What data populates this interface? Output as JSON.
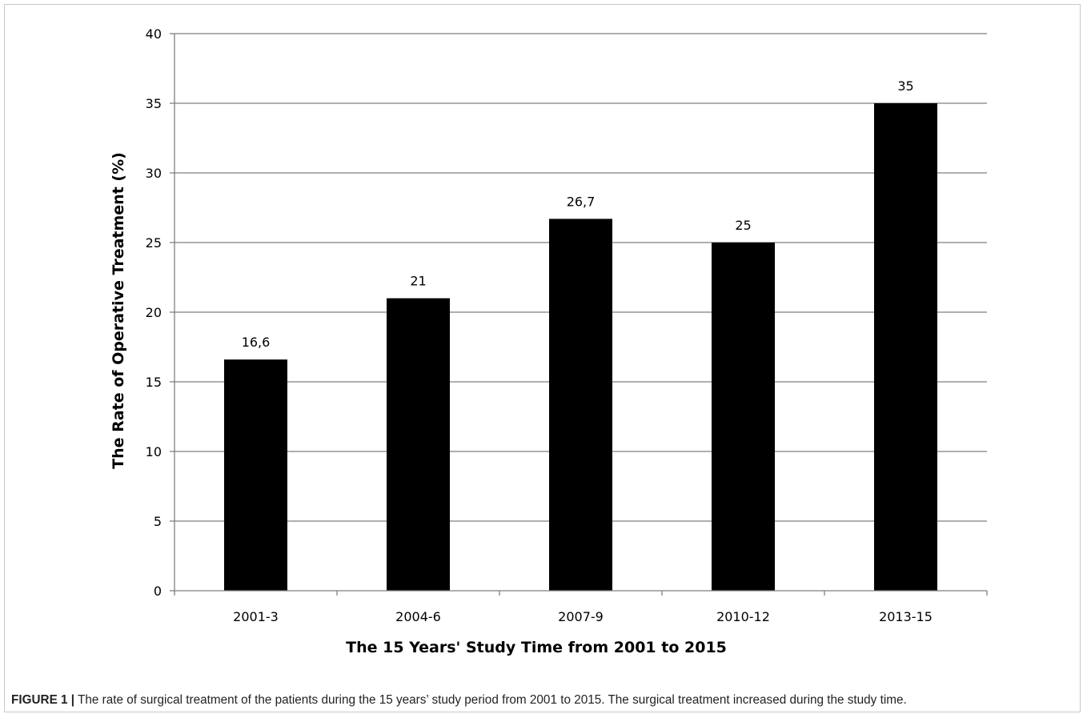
{
  "chart_data": {
    "type": "bar",
    "categories": [
      "2001-3",
      "2004-6",
      "2007-9",
      "2010-12",
      "2013-15"
    ],
    "values": [
      16.6,
      21,
      26.7,
      25,
      35
    ],
    "data_labels": [
      "16,6",
      "21",
      "26,7",
      "25",
      "35"
    ],
    "title": "",
    "xlabel": "The 15 Years' Study Time from 2001 to 2015",
    "ylabel": "The Rate of Operative Treatment (%)",
    "ylim": [
      0,
      40
    ],
    "yticks": [
      0,
      5,
      10,
      15,
      20,
      25,
      30,
      35,
      40
    ],
    "grid": true,
    "legend": "none",
    "bar_color": "#000000",
    "grid_color": "#7f7f7f"
  },
  "caption": {
    "lead": "FIGURE 1 |",
    "text": " The rate of surgical treatment of the patients during the 15 years’ study period from 2001 to 2015. The surgical treatment increased during the study time."
  }
}
